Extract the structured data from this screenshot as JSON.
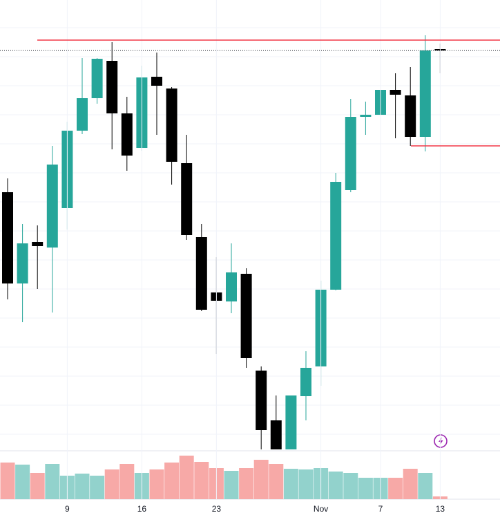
{
  "chart_data": {
    "type": "candlestick",
    "categories": [
      null,
      null,
      null,
      null,
      "9",
      null,
      null,
      null,
      null,
      "16",
      null,
      null,
      null,
      null,
      "23",
      null,
      null,
      null,
      null,
      null,
      null,
      "Nov",
      null,
      null,
      null,
      "7",
      null,
      null,
      null,
      "13"
    ],
    "open": [
      422,
      290,
      350,
      342,
      399,
      511,
      558,
      612,
      536,
      486,
      589,
      572,
      464,
      357,
      277,
      264,
      304,
      164,
      92,
      50,
      127,
      170,
      281,
      425,
      531,
      534,
      570,
      562,
      502,
      629
    ],
    "high": [
      442,
      376,
      374,
      489,
      524,
      616,
      616,
      639,
      560,
      605,
      624,
      574,
      505,
      376,
      328,
      348,
      312,
      170,
      128,
      128,
      192,
      294,
      450,
      557,
      553,
      582,
      594,
      603,
      649,
      637
    ],
    "low": [
      267,
      234,
      282,
      248,
      368,
      506,
      550,
      484,
      453,
      482,
      505,
      433,
      353,
      250,
      188,
      247,
      168,
      50,
      50,
      50,
      92,
      142,
      280,
      422,
      505,
      506,
      500,
      489,
      481,
      594
    ],
    "close": [
      290,
      348,
      344,
      462,
      511,
      558,
      615,
      536,
      475,
      588,
      576,
      466,
      360,
      252,
      265,
      306,
      182,
      78,
      50,
      128,
      168,
      281,
      437,
      531,
      534,
      570,
      563,
      502,
      627,
      627
    ],
    "volume": [
      53,
      50,
      38,
      51,
      34,
      37,
      34,
      43,
      51,
      38,
      43,
      53,
      63,
      54,
      45,
      41,
      45,
      57,
      51,
      44,
      43,
      45,
      40,
      38,
      31,
      31,
      31,
      44,
      38,
      4
    ],
    "up_color": "#26a69a",
    "down_color": "#000000",
    "volume_up_color": "#92d2cc",
    "volume_down_color": "#f7a9a7",
    "ylim": [
      50,
      700
    ],
    "volume_lim": [
      0,
      67
    ],
    "levels": [
      {
        "value": 642,
        "color": "#f23645"
      },
      {
        "value": 489,
        "color": "#f23645"
      }
    ],
    "last_price": 627
  }
}
